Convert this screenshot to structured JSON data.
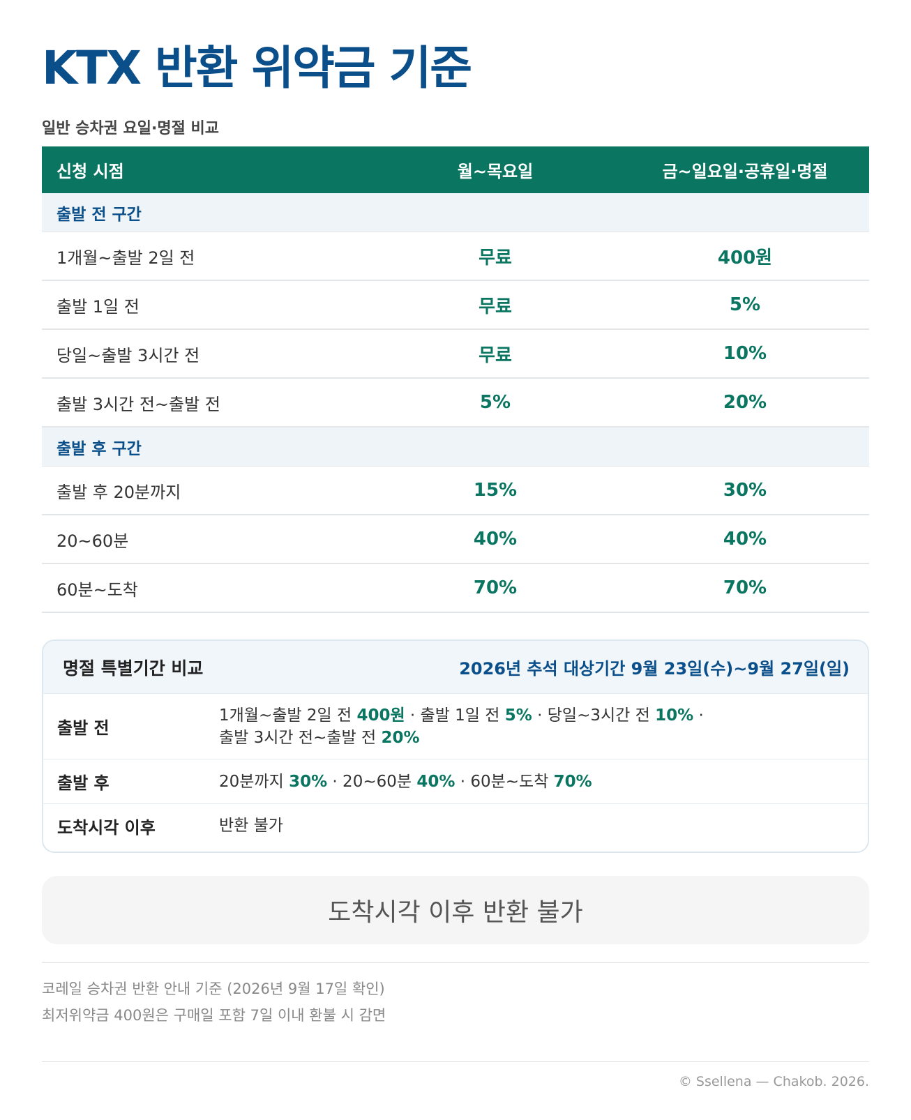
{
  "title": "KTX 반환 위약금 기준",
  "subtitle": "일반 승차권 요일·명절 비교",
  "colors": {
    "brand_blue": "#0b4f8a",
    "brand_green": "#0a7560",
    "section_bg": "#eef4f7"
  },
  "table": {
    "headers": [
      "신청 시점",
      "월~목요일",
      "금~일요일·공휴일·명절"
    ],
    "sections": [
      {
        "label": "출발 전 구간",
        "rows": [
          {
            "when": "1개월~출발 2일 전",
            "weekday": "무료",
            "weekend": "400원"
          },
          {
            "when": "출발 1일 전",
            "weekday": "무료",
            "weekend": "5%"
          },
          {
            "when": "당일~출발 3시간 전",
            "weekday": "무료",
            "weekend": "10%"
          },
          {
            "when": "출발 3시간 전~출발 전",
            "weekday": "5%",
            "weekend": "20%"
          }
        ]
      },
      {
        "label": "출발 후 구간",
        "rows": [
          {
            "when": "출발 후 20분까지",
            "weekday": "15%",
            "weekend": "30%"
          },
          {
            "when": "20~60분",
            "weekday": "40%",
            "weekend": "40%"
          },
          {
            "when": "60분~도착",
            "weekday": "70%",
            "weekend": "70%"
          }
        ]
      }
    ]
  },
  "holiday": {
    "title": "명절 특별기간 비교",
    "period": "2026년 추석 대상기간 9월 23일(수)~9월 27일(일)",
    "rows": [
      {
        "label": "출발 전",
        "line1": [
          {
            "text": "1개월~출발 2일 전 "
          },
          {
            "text": "400원",
            "hl": true
          },
          {
            "text": " · 출발 1일 전 "
          },
          {
            "text": "5%",
            "hl": true
          },
          {
            "text": " · 당일~3시간 전 "
          },
          {
            "text": "10%",
            "hl": true
          },
          {
            "text": " ·"
          }
        ],
        "line2": [
          {
            "text": "출발 3시간 전~출발 전 "
          },
          {
            "text": "20%",
            "hl": true
          }
        ]
      },
      {
        "label": "출발 후",
        "line1": [
          {
            "text": "20분까지 "
          },
          {
            "text": "30%",
            "hl": true
          },
          {
            "text": " · 20~60분 "
          },
          {
            "text": "40%",
            "hl": true
          },
          {
            "text": " · 60분~도착 "
          },
          {
            "text": "70%",
            "hl": true
          }
        ]
      },
      {
        "label": "도착시각 이후",
        "line1": [
          {
            "text": "반환 불가"
          }
        ]
      }
    ]
  },
  "notice": "도착시각 이후 반환 불가",
  "notes": [
    "코레일 승차권 반환 안내 기준 (2026년 9월 17일 확인)",
    "최저위약금 400원은 구매일 포함 7일 이내 환불 시 감면"
  ],
  "credit": "© Ssellena — Chakob. 2026."
}
